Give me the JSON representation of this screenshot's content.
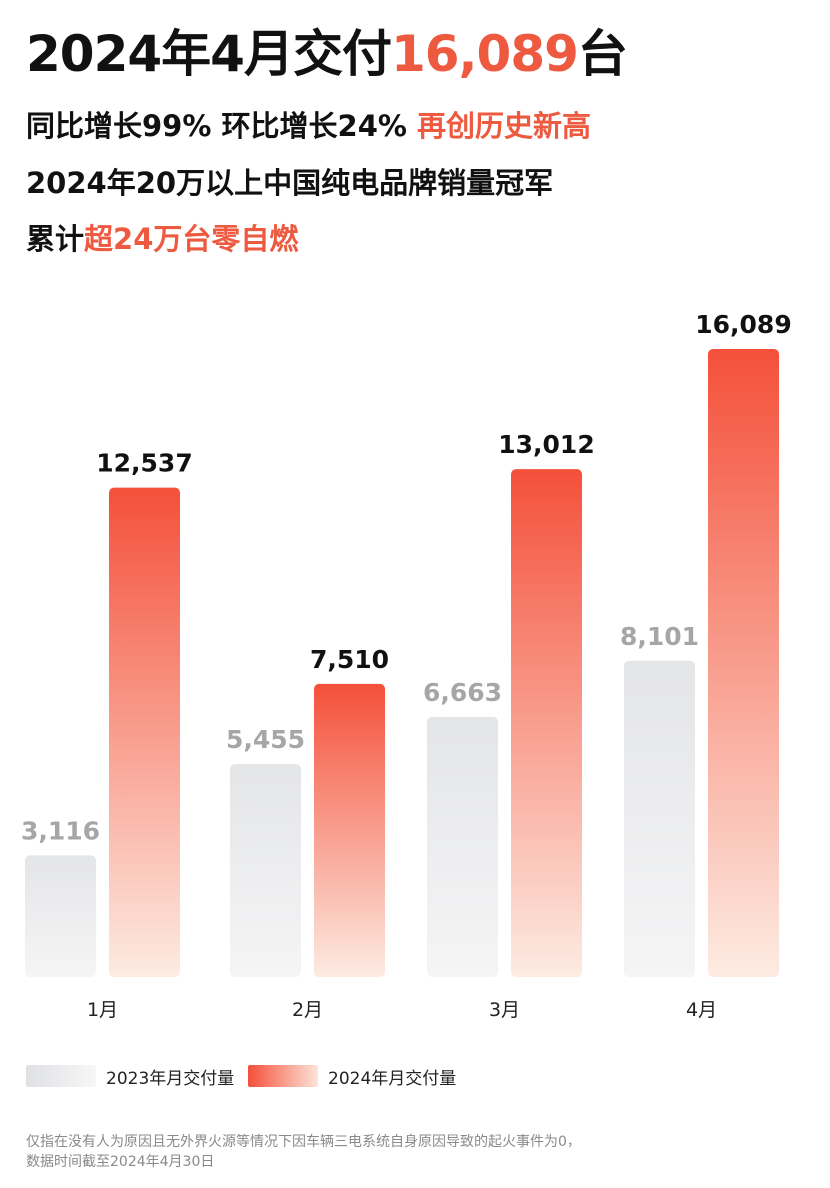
{
  "headline": {
    "prefix": "2024年4月交付",
    "highlight": "16,089",
    "suffix": "台"
  },
  "subline1": {
    "text": "同比增长99% 环比增长24% ",
    "highlight": "再创历史新高"
  },
  "subline2": {
    "text": "2024年20万以上中国纯电品牌销量冠军"
  },
  "subline3": {
    "text": "累计",
    "highlight": "超24万台零自燃"
  },
  "colors": {
    "accent": "#ee5a3f",
    "bar2024_top": "#f4503a",
    "bar2024_bottom": "#fdebe2",
    "bar2023_top": "#e4e5e7",
    "bar2023_bottom": "#f5f5f6",
    "label2023": "#a6a6a6",
    "label2024": "#111111"
  },
  "chart_data": {
    "type": "bar",
    "categories": [
      "1月",
      "2月",
      "3月",
      "4月"
    ],
    "series": [
      {
        "name": "2023年月交付量",
        "values": [
          3116,
          5455,
          6663,
          8101
        ],
        "labels": [
          "3,116",
          "5,455",
          "6,663",
          "8,101"
        ]
      },
      {
        "name": "2024年月交付量",
        "values": [
          12537,
          7510,
          13012,
          16089
        ],
        "labels": [
          "12,537",
          "7,510",
          "13,012",
          "16,089"
        ]
      }
    ],
    "ylim": [
      0,
      16089
    ],
    "grid": false,
    "legend": "bottom-left"
  },
  "legend": {
    "item1": "2023年月交付量",
    "item2": "2024年月交付量"
  },
  "footnote": {
    "line1": "仅指在没有人为原因且无外界火源等情况下因车辆三电系统自身原因导致的起火事件为0，",
    "line2": "数据时间截至2024年4月30日"
  }
}
